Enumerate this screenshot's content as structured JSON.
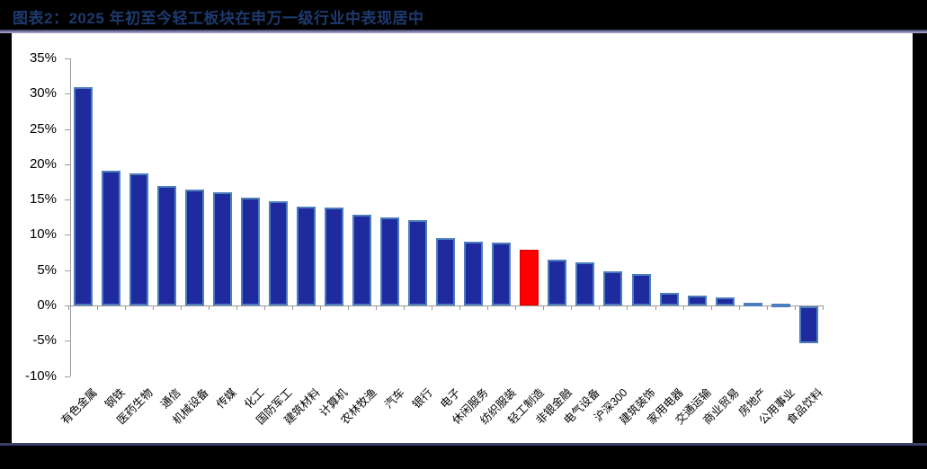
{
  "page": {
    "background_color": "#000000",
    "panel_background_color": "#ffffff",
    "top_divider_colors": [
      "#54547e",
      "#9a9ac0"
    ],
    "bottom_divider_color": "#3e3e6d"
  },
  "header": {
    "title": "图表2：2025 年初至今轻工板块在申万一级行业中表现居中",
    "title_color": "#1d3a6e"
  },
  "chart_data": {
    "type": "bar",
    "title": "图表2：2025 年初至今轻工板块在申万一级行业中表现居中",
    "categories": [
      "有色金属",
      "钢铁",
      "医药生物",
      "通信",
      "机械设备",
      "传媒",
      "化工",
      "国防军工",
      "建筑材料",
      "计算机",
      "农林牧渔",
      "汽车",
      "银行",
      "电子",
      "休闲服务",
      "纺织服装",
      "轻工制造",
      "非银金融",
      "电气设备",
      "沪深300",
      "建筑装饰",
      "家用电器",
      "交通运输",
      "商业贸易",
      "房地产",
      "公用事业",
      "食品饮料"
    ],
    "values": [
      30.9,
      19.1,
      18.7,
      16.9,
      16.4,
      16.0,
      15.3,
      14.8,
      14.0,
      13.9,
      12.8,
      12.5,
      12.1,
      9.6,
      9.0,
      8.9,
      7.9,
      6.5,
      6.1,
      4.8,
      4.5,
      1.8,
      1.4,
      1.1,
      0.4,
      0.2,
      -5.2
    ],
    "unit": "%",
    "highlight_category": "轻工制造",
    "highlight_index": 16,
    "xlabel": "",
    "ylabel": "",
    "ylim": [
      -10,
      35
    ],
    "ytick_step": 5,
    "ytick_labels": [
      "35%",
      "30%",
      "25%",
      "20%",
      "15%",
      "10%",
      "5%",
      "0%",
      "-5%",
      "-10%"
    ],
    "grid": false,
    "legend": "none",
    "bar_color": "#1f2a9e",
    "bar_border_color": "#4c7ebd",
    "highlight_color": "#fe0000",
    "highlight_border_color": "#e80000",
    "axis_color": "#9a9a9a",
    "tick_label_color": "#000000"
  }
}
